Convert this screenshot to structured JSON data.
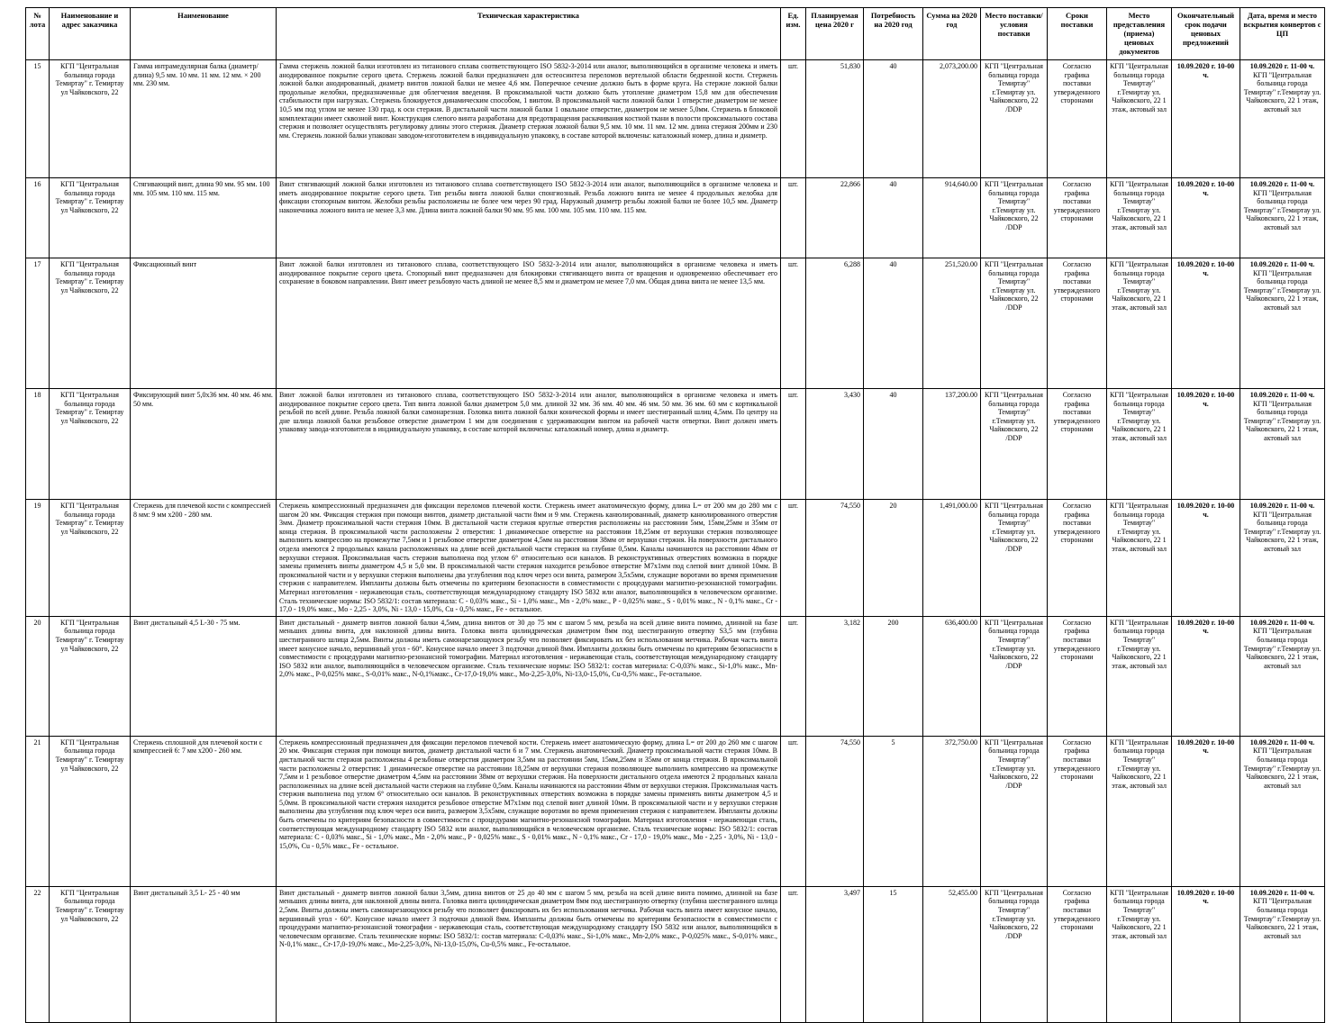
{
  "table": {
    "columns": [
      "№ лота",
      "Наименование и адрес заказчика",
      "Наименование",
      "Техническая характеристика",
      "Ед. изм.",
      "Планируемая цена 2020 г",
      "Потребность на 2020 год",
      "Сумма на 2020 год",
      "Место поставки/условия поставки",
      "Сроки поставки",
      "Место представления (приема) ценовых документов",
      "Окончательный срок подачи ценовых предложений",
      "Дата, время и место вскрытия конвертов с ЦП"
    ],
    "rows": [
      {
        "lot": "15",
        "customer": "КГП \"Центральная больница города Темиртау\" г. Темиртау ул Чайковского, 22",
        "name": "Гамма интрамедулярная балка (диаметр/длина) 9,5 мм. 10 мм. 11 мм. 12 мм. × 200 мм. 230 мм.",
        "spec": "Гамма стержень ложной балки изготовлен из титанового сплава соответствующего ISO 5832-3-2014 или аналог, выполняющийся в организме человека и иметь анодированное покрытие серого цвета. Стержень ложной балки предназначен для остеосинтеза переломов вертельной области бедренной кости. Стержень ложной балки анодированный, диаметр винтов ложной балки не менее 4,6 мм. Поперечное сечение должно быть в форме круга. На стержне ложной балки продольные желобки, предназначенные для облегчения введения. В проксимальной части должно быть утопление диаметром 15,8 мм для обеспечения стабильности при нагрузках. Стержень блокируется динамическим способом, 1 винтом. В проксимальной части ложной балки 1 отверстие диаметром не менее 10,5 мм под углом не менее 130 град. к оси стержня. В дистальной части ложной балки 1 овальное отверстие, диаметром не менее 5,0мм. Стержень в блоковой комплектации имеет сквозной винт. Конструкция слепого винта разработана для предотвращения раскачивания костной ткани в полости проксимального состава стержня и позволяет осуществлять регулировку длины этого стержня. Диаметр стержня ложной балки 9,5 мм. 10 мм. 11 мм. 12 мм. длина стержня 200мм и 230 мм. Стержень ложной балки упакован заводом-изготовителем в индивидуальную упаковку, в составе которой включены: каталожный номер, длина и диаметр.",
        "unit": "шт.",
        "price": "51,830",
        "qty": "40",
        "sum": "2,073,200.00",
        "delivery_place": "КГП \"Центральная больница города Темиртау\" г.Темиртау ул. Чайковского, 22 /DDP",
        "terms": "Согласно графика поставки утвержденного сторонами",
        "submission_place": "КГП \"Центральная больница города Темиртау\" г.Темиртау ул. Чайковского, 22 1 этаж, актовый зал",
        "deadline": "10.09.2020 г. 10-00 ч.",
        "opening_datetime": "10.09.2020 г. 11-00 ч.",
        "opening_place": "КГП \"Центральная больница города Темиртау\" г.Темиртау ул. Чайковского, 22 1 этаж, актовый зал"
      },
      {
        "lot": "16",
        "customer": "КГП \"Центральная больница города Темиртау\" г. Темиртау ул Чайковского, 22",
        "name": "Стягивающий винт, длина 90 мм. 95 мм. 100 мм. 105 мм. 110 мм. 115 мм.",
        "spec": "Винт стягивающий ложной балки изготовлен из титанового сплава соответствующего ISO 5832-3-2014 или аналог, выполняющийся в организме человека и иметь анодированное покрытие серого цвета. Тип резьбы винта ложной балки спонгиозный. Резьба ложного винта не менее 4 продольных желобка для фиксации стопорным винтом. Желобки резьбы расположены не более чем через 90 град. Наружный диаметр резьбы ложной балки не более 10,5 мм. Диаметр наконечника ложного винта не менее 3,3 мм. Длина винта ложной балки 90 мм. 95 мм. 100 мм. 105 мм. 110 мм. 115 мм.",
        "unit": "шт.",
        "price": "22,866",
        "qty": "40",
        "sum": "914,640.00",
        "delivery_place": "КГП \"Центральная больница города Темиртау\" г.Темиртау ул. Чайковского, 22 /DDP",
        "terms": "Согласно графика поставки утвержденного сторонами",
        "submission_place": "КГП \"Центральная больница города Темиртау\" г.Темиртау ул. Чайковского, 22 1 этаж, актовый зал",
        "deadline": "10.09.2020 г. 10-00 ч.",
        "opening_datetime": "10.09.2020 г. 11-00 ч.",
        "opening_place": "КГП \"Центральная больница города Темиртау\" г.Темиртау ул. Чайковского, 22 1 этаж, актовый зал"
      },
      {
        "lot": "17",
        "customer": "КГП \"Центральная больница города Темиртау\" г. Темиртау ул Чайковского, 22",
        "name": "Фиксационный винт",
        "spec": "Винт ложной балки изготовлен из титанового сплава, соответствующего ISO 5832-3-2014 или аналог, выполняющийся в организме человека и иметь анодированное покрытие серого цвета. Стопорный винт предназначен для блокировки стягивающего винта от вращения и одновременно обеспечивает его сохранение в боковом направлении. Винт имеет резьбовую часть длиной не менее 8,5 мм и диаметром не менее 7,0 мм. Общая длина винта не менее 13,5 мм.",
        "unit": "шт.",
        "price": "6,288",
        "qty": "40",
        "sum": "251,520.00",
        "delivery_place": "КГП \"Центральная больница города Темиртау\" г.Темиртау ул. Чайковского, 22 /DDP",
        "terms": "Согласно графика поставки утвержденного сторонами",
        "submission_place": "КГП \"Центральная больница города Темиртау\" г.Темиртау ул. Чайковского, 22 1 этаж, актовый зал",
        "deadline": "10.09.2020 г. 10-00 ч.",
        "opening_datetime": "10.09.2020 г. 11-00 ч.",
        "opening_place": "КГП \"Центральная больница города Темиртау\" г.Темиртау ул. Чайковского, 22 1 этаж, актовый зал"
      },
      {
        "lot": "18",
        "customer": "КГП \"Центральная больница города Темиртау\" г. Темиртау ул Чайковского, 22",
        "name": "Фиксирующий винт 5,0х36 мм. 40 мм. 46 мм. 50 мм.",
        "spec": "Винт ложной балки изготовлен из титанового сплава, соответствующего ISO 5832-3-2014 или аналог, выполняющийся в организме человека и иметь анодированное покрытие серого цвета. Тип винта ложной балки диаметром 5,0 мм. длиной 32 мм. 36 мм. 40 мм. 46 мм. 50 мм. 36 мм. 60 мм с кортикальной резьбой по всей длине. Резьба ложной балки самонарезная. Головка винта ложной балки конической формы и имеет шестигранный шлиц 4,5мм. По центру на дне шлица ложной балки резьбовое отверстие диаметром 1 мм для соединения с удерживающим винтом на рабочей части отвертки. Винт должен иметь упаковку завода-изготовителя в индивидуальную упаковку, в составе которой включены: каталожный номер, длина и диаметр.",
        "unit": "шт.",
        "price": "3,430",
        "qty": "40",
        "sum": "137,200.00",
        "delivery_place": "КГП \"Центральная больница города Темиртау\" г.Темиртау ул. Чайковского, 22 /DDP",
        "terms": "Согласно графика поставки утвержденного сторонами",
        "submission_place": "КГП \"Центральная больница города Темиртау\" г.Темиртау ул. Чайковского, 22 1 этаж, актовый зал",
        "deadline": "10.09.2020 г. 10-00 ч.",
        "opening_datetime": "10.09.2020 г. 11-00 ч.",
        "opening_place": "КГП \"Центральная больница города Темиртау\" г.Темиртау ул. Чайковского, 22 1 этаж, актовый зал"
      },
      {
        "lot": "19",
        "customer": "КГП \"Центральная больница города Темиртау\" г. Темиртау ул Чайковского, 22",
        "name": "Стержень для плечевой кости с компрессией 8 мм: 9 мм х200 - 280 мм.",
        "spec": "Стержень компрессионный предназначен для фиксации переломов плечевой кости. Стержень имеет анатомическую форму, длина L= от 200 мм до 280 мм с шагом 20 мм. Фиксация стержня при помощи винтов, диаметр дистальной части 8мм и 9 мм. Стержень канюлированный, диаметр канюлированного отверстия 3мм. Диаметр проксимальной части стержня 10мм. В дистальной части стержня круглые отверстия расположены на расстоянии 5мм, 15мм,25мм и 35мм от конца стержня. В проксимальной части расположены 2 отверстия: 1 динамическое отверстие на расстоянии 18,25мм от верхушки стержня позволяющее выполнить компрессию на промежутке 7,5мм и 1 резьбовое отверстие диаметром 4,5мм на расстоянии 38мм от верхушки стержня. На поверхности дистального отдела имеются 2 продольных канала расположенных на длине всей дистальной части стержня на глубине 0,5мм. Каналы начинаются на расстоянии 48мм от верхушки стержня. Проксимальная часть стержня выполнена под углом 6° относительно оси каналов. В реконструктивных отверстиях возможна в порядке замены применять винты диаметром 4,5 и 5,0 мм. В проксимальной части стержня находится резьбовое отверстие М7х1мм под слепой винт длиной 10мм. В проксимальной части и у верхушки стержня выполнены два углубления под ключ через оси винта, размером 3,5х5мм, служащие воротами во время применения стержня с направителем. Импланты должны быть отмечены по критериям безопасности в совместимости с процедурами магнитно-резонансной томографии. Материал изготовления - нержавеющая сталь, соответствующая международному стандарту ISO 5832 или аналог, выполняющийся в человеческом организме. Сталь технические нормы: ISO 5832/1: состав материала: C - 0,03% макс., Si - 1,0% макс., Mn - 2,0% макс., P - 0,025% макс., S - 0,01% макс., N - 0,1% макс., Cr - 17,0 - 19,0% макс., Mo - 2,25 - 3,0%, Ni - 13,0 - 15,0%, Cu - 0,5% макс., Fe - остальное.",
        "unit": "шт.",
        "price": "74,550",
        "qty": "20",
        "sum": "1,491,000.00",
        "delivery_place": "КГП \"Центральная больница города Темиртау\" г.Темиртау ул. Чайковского, 22 /DDP",
        "terms": "Согласно графика поставки утвержденного сторонами",
        "submission_place": "КГП \"Центральная больница города Темиртау\" г.Темиртау ул. Чайковского, 22 1 этаж, актовый зал",
        "deadline": "10.09.2020 г. 10-00 ч.",
        "opening_datetime": "10.09.2020 г. 11-00 ч.",
        "opening_place": "КГП \"Центральная больница города Темиртау\" г.Темиртау ул. Чайковского, 22 1 этаж, актовый зал"
      },
      {
        "lot": "20",
        "customer": "КГП \"Центральная больница города Темиртау\" г. Темиртау ул Чайковского, 22",
        "name": "Винт дистальный 4,5 L-30 - 75 мм.",
        "spec": "Винт дистальный - диаметр винтов ложной балки 4,5мм, длина винтов от 30 до 75 мм с шагом 5 мм, резьба на всей длине винта помимо, длинной на базе меньших длины винта, для наклонной длины винта. Головка винта цилиндрическая диаметром 8мм под шестигранную отвертку S3,5 мм (глубина шестигранного шлица 2,5мм. Винты должны иметь самонарезающуюся резьбу что позволяет фиксировать их без использования метчика. Рабочая часть винта имеет конусное начало, вершинный угол - 60°. Конусное начало имеет 3 подточки длиной 8мм. Импланты должны быть отмечены по критериям безопасности в совместимости с процедурами магнитно-резонансной томографии. Материал изготовления - нержавеющая сталь, соответствующая международному стандарту ISO 5832 или аналог, выполняющийся в человеческом организме. Сталь технические нормы: ISO 5832/1: состав материала: C-0,03% макс., Si-1,0% макс., Mn-2,0% макс., P-0,025% макс., S-0,01% макс., N-0,1%макс., Cr-17,0-19,0% макс., Mo-2,25-3,0%, Ni-13,0-15,0%, Cu-0,5% макс., Fe-остальное.",
        "unit": "шт.",
        "price": "3,182",
        "qty": "200",
        "sum": "636,400.00",
        "delivery_place": "КГП \"Центральная больница города Темиртау\" г.Темиртау ул. Чайковского, 22 /DDP",
        "terms": "Согласно графика поставки утвержденного сторонами",
        "submission_place": "КГП \"Центральная больница города Темиртау\" г.Темиртау ул. Чайковского, 22 1 этаж, актовый зал",
        "deadline": "10.09.2020 г. 10-00 ч.",
        "opening_datetime": "10.09.2020 г. 11-00 ч.",
        "opening_place": "КГП \"Центральная больница города Темиртау\" г.Темиртау ул. Чайковского, 22 1 этаж, актовый зал"
      },
      {
        "lot": "21",
        "customer": "КГП \"Центральная больница города Темиртау\" г. Темиртау ул Чайковского, 22",
        "name": "Стержень сплошной для плечевой кости с компрессией 6: 7 мм х200 - 260 мм.",
        "spec": "Стержень компрессионный предназначен для фиксации переломов плечевой кости. Стержень имеет анатомическую форму, длина L= от 200 до 260 мм с шагом 20 мм. Фиксация стержня при помощи винтов, диаметр дистальной части 6 и 7 мм. Стержень анатомический. Диаметр проксимальной части стержня 10мм. В дистальной части стержня расположены 4 резьбовые отверстия диаметром 3,5мм на расстоянии 5мм, 15мм,25мм и 35мм от конца стержня. В проксимальной части расположены 2 отверстия: 1 динамическое отверстие на расстоянии 18,25мм от верхушки стержня позволяющее выполнить компрессию на промежутке 7,5мм и 1 резьбовое отверстие диаметром 4,5мм на расстоянии 38мм от верхушки стержня. На поверхности дистального отдела имеются 2 продольных канала расположенных на длине всей дистальной части стержня на глубине 0,5мм. Каналы начинаются на расстоянии 48мм от верхушки стержня. Проксимальная часть стержня выполнена под углом 6° относительно оси каналов. В реконструктивных отверстиях возможна в порядке замены применять винты диаметром 4,5 и 5,0мм. В проксимальной части стержня находится резьбовое отверстие М7х1мм под слепой винт длиной 10мм. В проксимальной части и у верхушки стержня выполнены два углубления под ключ через оси винта, размером 3,5х5мм, служащие воротами во время применения стержня с направителем. Импланты должны быть отмечены по критериям безопасности в совместимости с процедурами магнитно-резонансной томографии. Материал изготовления - нержавеющая сталь, соответствующая международному стандарту ISO 5832 или аналог, выполняющийся в человеческом организме. Сталь технические нормы: ISO 5832/1: состав материала: C - 0,03% макс., Si - 1,0% макс., Mn - 2,0% макс., P - 0,025% макс., S - 0,01% макс., N - 0,1% макс., Cr - 17,0 - 19,0% макс., Mo - 2,25 - 3,0%, Ni - 13,0 - 15,0%, Cu - 0,5% макс., Fe - остальное.",
        "unit": "шт.",
        "price": "74,550",
        "qty": "5",
        "sum": "372,750.00",
        "delivery_place": "КГП \"Центральная больница города Темиртау\" г.Темиртау ул. Чайковского, 22 /DDP",
        "terms": "Согласно графика поставки утвержденного сторонами",
        "submission_place": "КГП \"Центральная больница города Темиртау\" г.Темиртау ул. Чайковского, 22 1 этаж, актовый зал",
        "deadline": "10.09.2020 г. 10-00 ч.",
        "opening_datetime": "10.09.2020 г. 11-00 ч.",
        "opening_place": "КГП \"Центральная больница города Темиртау\" г.Темиртау ул. Чайковского, 22 1 этаж, актовый зал"
      },
      {
        "lot": "22",
        "customer": "КГП \"Центральная больница города Темиртау\" г. Темиртау ул Чайковского, 22",
        "name": "Винт дистальный 3,5 L- 25 - 40 мм",
        "spec": "Винт дистальный - диаметр винтов ложной балки 3,5мм, длина винтов от 25 до 40 мм с шагом 5 мм, резьба на всей длине винта помимо, длинной на базе меньших длины винта, для наклонной длины винта. Головка винта цилиндрическая диаметром 8мм под шестигранную отвертку (глубина шестигранного шлица 2,5мм. Винты должны иметь самонарезающуюся резьбу что позволяет фиксировать их без использования метчика. Рабочая часть винта имеет конусное начало, вершинный угол - 60°. Конусное начало имеет 3 подточки длиной 8мм. Импланты должны быть отмечены по критериям безопасности в совместимости с процедурами магнитно-резонансной томографии - нержавеющая сталь, соответствующая международному стандарту ISO 5832 или аналог, выполняющийся в человеческом организме. Сталь технические нормы: ISO 5832/1: состав материала: C-0,03% макс., Si-1,0% макс., Mn-2,0% макс., P-0,025% макс., S-0,01% макс., N-0,1% макс., Cr-17,0-19,0% макс., Mo-2,25-3,0%, Ni-13,0-15,0%, Cu-0,5% макс., Fe-остальное.",
        "unit": "шт.",
        "price": "3,497",
        "qty": "15",
        "sum": "52,455.00",
        "delivery_place": "КГП \"Центральная больница города Темиртау\" г.Темиртау ул. Чайковского, 22 /DDP",
        "terms": "Согласно графика поставки утвержденного сторонами",
        "submission_place": "КГП \"Центральная больница города Темиртау\" г.Темиртау ул. Чайковского, 22 1 этаж, актовый зал",
        "deadline": "10.09.2020 г. 10-00 ч.",
        "opening_datetime": "10.09.2020 г. 11-00 ч.",
        "opening_place": "КГП \"Центральная больница города Темиртау\" г.Темиртау ул. Чайковского, 22 1 этаж, актовый зал"
      }
    ]
  }
}
